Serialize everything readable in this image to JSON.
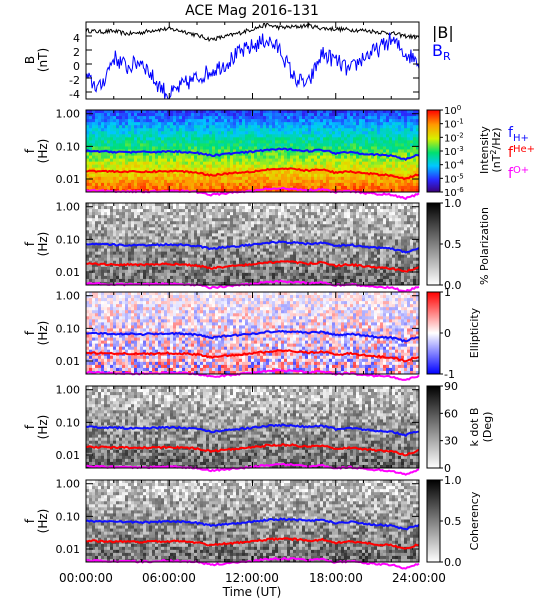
{
  "title": "ACE Mag 2016-131",
  "colors": {
    "B_total": "#000000",
    "B_R": "#0000ff",
    "f_H": "#1010ff",
    "f_He": "#ff0000",
    "f_O": "#ff00ff"
  },
  "chart_data": {
    "type": "line",
    "x_label": "Time (UT)",
    "x_tick_labels": [
      "00:00:00",
      "06:00:00",
      "12:00:00",
      "18:00:00",
      "24:00:00"
    ],
    "x_range_hours": [
      0,
      24
    ],
    "panels": [
      {
        "id": "b-field",
        "type": "line",
        "ylabel": "B",
        "yunit": "(nT)",
        "ylim": [
          -5,
          6
        ],
        "y_ticks": [
          -4,
          -2,
          0,
          2,
          4
        ],
        "legend": [
          {
            "label": "|B|",
            "color": "#000000"
          },
          {
            "label": "B",
            "sub": "R",
            "color": "#0000ff"
          }
        ],
        "series": [
          {
            "label": "|B|",
            "color": "#000000",
            "x": [
              0,
              1,
              2,
              3,
              4,
              5,
              6,
              7,
              8,
              9,
              10,
              11,
              12,
              13,
              14,
              15,
              16,
              17,
              18,
              19,
              20,
              21,
              22,
              23,
              24
            ],
            "y": [
              4.8,
              4.6,
              4.7,
              4.3,
              4.5,
              4.9,
              5.0,
              4.7,
              4.1,
              3.5,
              3.9,
              4.4,
              5.0,
              5.6,
              5.2,
              5.3,
              5.5,
              5.1,
              5.0,
              4.9,
              4.8,
              4.6,
              4.4,
              4.0,
              3.8
            ]
          },
          {
            "label": "B_R",
            "color": "#0000ff",
            "x": [
              0,
              1,
              2,
              3,
              4,
              5,
              6,
              7,
              8,
              9,
              10,
              11,
              12,
              13,
              14,
              15,
              16,
              17,
              18,
              19,
              20,
              21,
              22,
              23,
              24
            ],
            "y": [
              -2.0,
              -3.5,
              1.0,
              -0.5,
              0.5,
              -2.5,
              -4.5,
              -3.0,
              -2.0,
              -1.0,
              0.0,
              1.5,
              2.5,
              3.5,
              2.0,
              -2.0,
              -3.0,
              1.5,
              0.5,
              -1.0,
              1.0,
              2.0,
              3.5,
              1.5,
              0.5
            ]
          }
        ]
      },
      {
        "id": "intensity",
        "type": "heatmap",
        "ylabel": "f",
        "yunit": "(Hz)",
        "y_tick_labels": [
          "1.00",
          "0.10",
          "0.01"
        ],
        "yscale": "log",
        "ylim": [
          0.004,
          1.3
        ],
        "colorbar": {
          "label": "Intensity",
          "unit_label": "(nT",
          "unit_sup": "2",
          "unit_end": "/Hz)",
          "tick_labels": [
            {
              "base": "10",
              "exp": "0"
            },
            {
              "base": "10",
              "exp": "-1"
            },
            {
              "base": "10",
              "exp": "-2"
            },
            {
              "base": "10",
              "exp": "-3"
            },
            {
              "base": "10",
              "exp": "-4"
            },
            {
              "base": "10",
              "exp": "-5"
            },
            {
              "base": "10",
              "exp": "-6"
            }
          ],
          "tick_values": [
            1,
            0.1,
            0.01,
            0.001,
            0.0001,
            1e-05,
            1e-06
          ],
          "colormap": "rainbow"
        },
        "legend": [
          {
            "label": "f",
            "sub": "H+",
            "color": "#1010ff"
          },
          {
            "label": "f",
            "sub": "He+",
            "color": "#ff0000"
          },
          {
            "label": "f",
            "sub": "O+",
            "color": "#ff00ff"
          }
        ]
      },
      {
        "id": "polarization",
        "type": "heatmap",
        "ylabel": "f",
        "yunit": "(Hz)",
        "y_tick_labels": [
          "1.00",
          "0.10",
          "0.01"
        ],
        "yscale": "log",
        "colorbar": {
          "label": "% Polarization",
          "tick_labels": [
            "1.0",
            "0.5",
            "0.0"
          ],
          "tick_values": [
            1.0,
            0.5,
            0.0
          ],
          "colormap": "gray"
        }
      },
      {
        "id": "ellipticity",
        "type": "heatmap",
        "ylabel": "f",
        "yunit": "(Hz)",
        "y_tick_labels": [
          "1.00",
          "0.10",
          "0.01"
        ],
        "yscale": "log",
        "colorbar": {
          "label": "Ellipticity",
          "tick_labels": [
            "1",
            "0",
            "-1"
          ],
          "tick_values": [
            1,
            0,
            -1
          ],
          "colormap": "bwr"
        }
      },
      {
        "id": "kdotb",
        "type": "heatmap",
        "ylabel": "f",
        "yunit": "(Hz)",
        "y_tick_labels": [
          "1.00",
          "0.10",
          "0.01"
        ],
        "yscale": "log",
        "colorbar": {
          "label": "k dot B",
          "unit_label": "(Deg)",
          "tick_labels": [
            "90",
            "60",
            "30",
            "0"
          ],
          "tick_values": [
            90,
            60,
            30,
            0
          ],
          "colormap": "gray"
        }
      },
      {
        "id": "coherency",
        "type": "heatmap",
        "ylabel": "f",
        "yunit": "(Hz)",
        "y_tick_labels": [
          "1.00",
          "0.10",
          "0.01"
        ],
        "yscale": "log",
        "colorbar": {
          "label": "Coherency",
          "tick_labels": [
            "1.0",
            "0.5",
            "0.0"
          ],
          "tick_values": [
            1.0,
            0.5,
            0.0
          ],
          "colormap": "gray"
        }
      }
    ],
    "gyrofrequency_lines": [
      {
        "label": "f_H+",
        "color": "#1010ff",
        "x": [
          0,
          2,
          4,
          6,
          7,
          8,
          9,
          10,
          11,
          12,
          13,
          14,
          15,
          16,
          17,
          18,
          19,
          20,
          21,
          22,
          23,
          24
        ],
        "y": [
          0.072,
          0.068,
          0.066,
          0.07,
          0.068,
          0.063,
          0.052,
          0.058,
          0.063,
          0.068,
          0.078,
          0.082,
          0.08,
          0.072,
          0.078,
          0.062,
          0.068,
          0.06,
          0.055,
          0.052,
          0.04,
          0.055
        ]
      },
      {
        "label": "f_He+",
        "color": "#ff0000",
        "x": [
          0,
          2,
          4,
          6,
          7,
          8,
          9,
          10,
          11,
          12,
          13,
          14,
          15,
          16,
          17,
          18,
          19,
          20,
          21,
          22,
          23,
          24
        ],
        "y": [
          0.018,
          0.017,
          0.0165,
          0.0175,
          0.017,
          0.0158,
          0.013,
          0.0145,
          0.0158,
          0.017,
          0.0195,
          0.0205,
          0.02,
          0.018,
          0.0195,
          0.0155,
          0.017,
          0.015,
          0.0138,
          0.013,
          0.01,
          0.0138
        ]
      },
      {
        "label": "f_O+",
        "color": "#ff00ff",
        "x": [
          0,
          2,
          4,
          6,
          7,
          8,
          9,
          10,
          11,
          12,
          13,
          14,
          15,
          16,
          17,
          18,
          19,
          20,
          21,
          22,
          23,
          24
        ],
        "y": [
          0.0045,
          0.00425,
          0.0041,
          0.0044,
          0.00425,
          0.004,
          0.0033,
          0.0036,
          0.004,
          0.00425,
          0.0049,
          0.0051,
          0.005,
          0.0045,
          0.0049,
          0.0039,
          0.00425,
          0.00375,
          0.0035,
          0.0033,
          0.0025,
          0.0035
        ]
      }
    ]
  }
}
